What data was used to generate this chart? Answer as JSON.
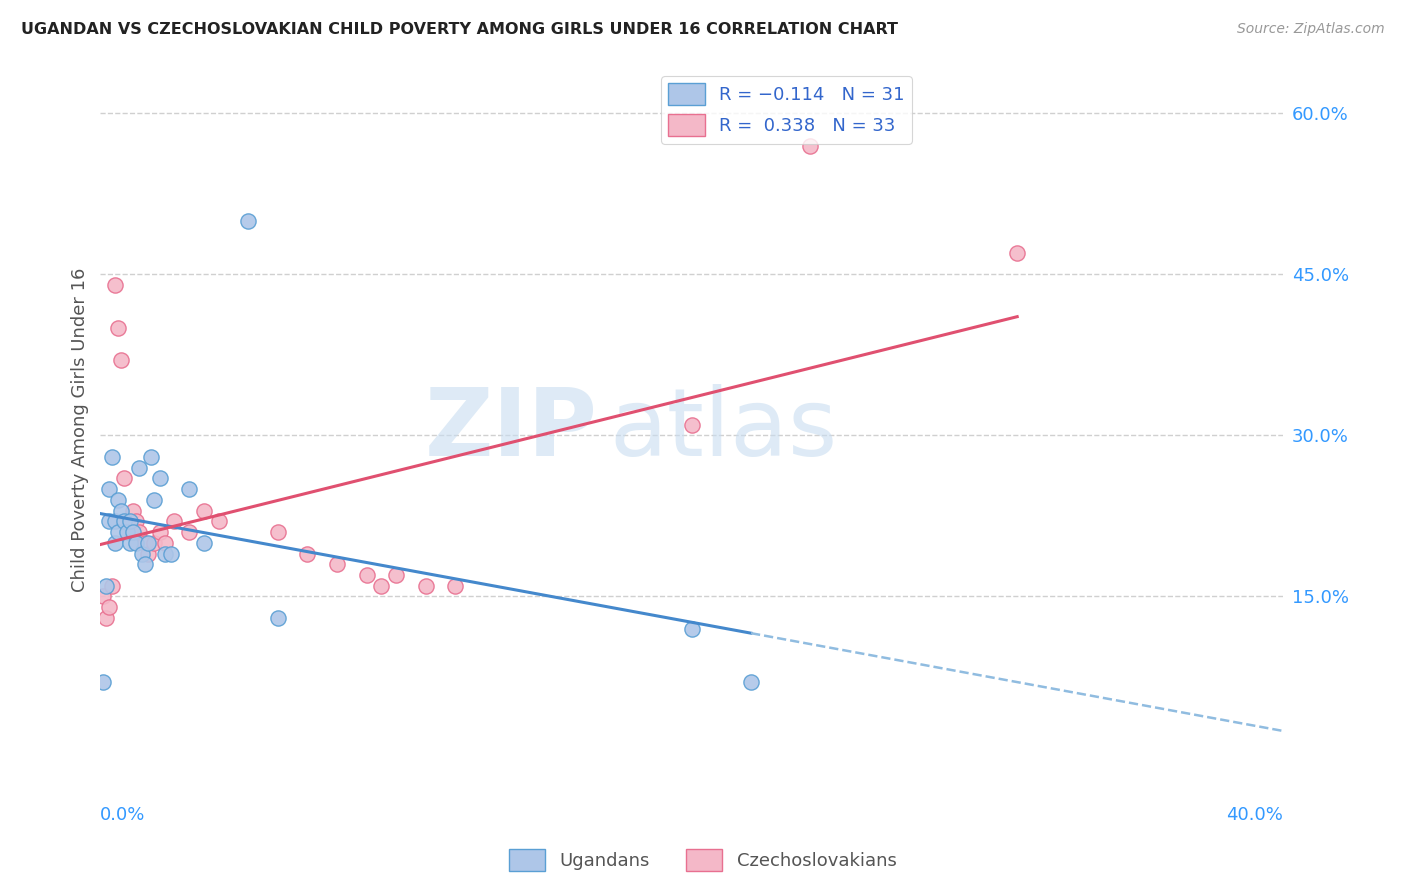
{
  "title": "UGANDAN VS CZECHOSLOVAKIAN CHILD POVERTY AMONG GIRLS UNDER 16 CORRELATION CHART",
  "source": "Source: ZipAtlas.com",
  "ylabel": "Child Poverty Among Girls Under 16",
  "xlim": [
    0.0,
    0.4
  ],
  "ylim": [
    -0.04,
    0.65
  ],
  "yticks": [
    0.15,
    0.3,
    0.45,
    0.6
  ],
  "ytick_labels": [
    "15.0%",
    "30.0%",
    "45.0%",
    "60.0%"
  ],
  "grid_color": "#d0d0d0",
  "background_color": "#ffffff",
  "ugandan_color": "#aec6e8",
  "czechoslovakian_color": "#f4b8c8",
  "ugandan_edge": "#5a9fd4",
  "czechoslovakian_edge": "#e87090",
  "line_blue": "#4488cc",
  "line_blue_dash": "#90bce0",
  "line_pink": "#e05070",
  "ugandan_x": [
    0.001,
    0.002,
    0.003,
    0.003,
    0.004,
    0.005,
    0.005,
    0.006,
    0.006,
    0.007,
    0.008,
    0.009,
    0.01,
    0.01,
    0.011,
    0.012,
    0.013,
    0.014,
    0.015,
    0.016,
    0.017,
    0.018,
    0.02,
    0.022,
    0.024,
    0.03,
    0.035,
    0.05,
    0.06,
    0.2,
    0.22
  ],
  "ugandan_y": [
    0.07,
    0.16,
    0.22,
    0.25,
    0.28,
    0.22,
    0.2,
    0.24,
    0.21,
    0.23,
    0.22,
    0.21,
    0.2,
    0.22,
    0.21,
    0.2,
    0.27,
    0.19,
    0.18,
    0.2,
    0.28,
    0.24,
    0.26,
    0.19,
    0.19,
    0.25,
    0.2,
    0.5,
    0.13,
    0.12,
    0.07
  ],
  "czechoslovakian_x": [
    0.001,
    0.002,
    0.003,
    0.004,
    0.005,
    0.006,
    0.007,
    0.008,
    0.009,
    0.01,
    0.011,
    0.012,
    0.013,
    0.015,
    0.016,
    0.018,
    0.02,
    0.022,
    0.025,
    0.03,
    0.035,
    0.04,
    0.06,
    0.07,
    0.08,
    0.09,
    0.095,
    0.1,
    0.11,
    0.12,
    0.2,
    0.24,
    0.31
  ],
  "czechoslovakian_y": [
    0.15,
    0.13,
    0.14,
    0.16,
    0.44,
    0.4,
    0.37,
    0.26,
    0.22,
    0.21,
    0.23,
    0.22,
    0.21,
    0.2,
    0.19,
    0.2,
    0.21,
    0.2,
    0.22,
    0.21,
    0.23,
    0.22,
    0.21,
    0.19,
    0.18,
    0.17,
    0.16,
    0.17,
    0.16,
    0.16,
    0.31,
    0.57,
    0.47
  ],
  "watermark_top": "ZIP",
  "watermark_bot": "atlas",
  "marker_size": 120
}
